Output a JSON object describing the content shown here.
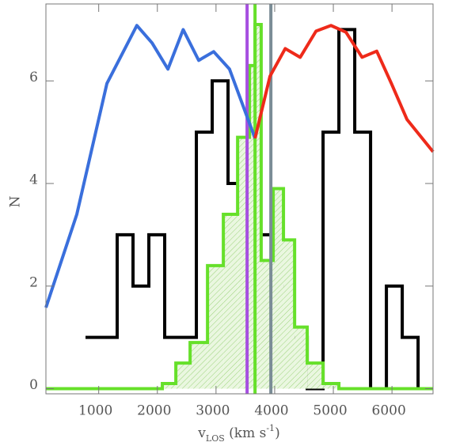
{
  "chart_data": {
    "type": "histogram",
    "xlim": [
      100,
      6700
    ],
    "ylim": [
      -0.1,
      7.5
    ],
    "xticks": [
      1000,
      2000,
      3000,
      4000,
      5000,
      6000
    ],
    "yticks": [
      0,
      2,
      4,
      6
    ],
    "ylabel": "N",
    "xlabel": [
      {
        "role": "base",
        "text": "v"
      },
      {
        "role": "sub",
        "text": "LOS"
      },
      {
        "role": "base",
        "text": " (km s"
      },
      {
        "role": "sup",
        "text": "-1"
      },
      {
        "role": "base",
        "text": ")"
      }
    ],
    "histograms": [
      {
        "color": "#000000",
        "hatch": false,
        "bins": [
          775,
          1045,
          1315,
          1585,
          1855,
          2125,
          2395,
          2665,
          2935,
          3205,
          3475,
          3745,
          4015,
          4285,
          4555,
          4825,
          5095,
          5365,
          5635,
          5905,
          6175,
          6445,
          6700
        ],
        "counts": [
          1,
          1,
          3,
          2,
          3,
          1,
          1,
          5,
          6,
          4,
          3,
          3,
          2,
          1,
          0,
          5,
          7,
          5,
          0,
          2,
          1,
          0
        ]
      },
      {
        "color": "#66e02a",
        "hatch": true,
        "bins": [
          100,
          2085,
          2315,
          2558,
          2855,
          3125,
          3368,
          3570,
          3665,
          3770,
          3975,
          4150,
          4340,
          4555,
          4825,
          5095,
          6700
        ],
        "counts": [
          0,
          0.1,
          0.5,
          0.9,
          2.4,
          3.4,
          4.9,
          6.3,
          7.1,
          2.5,
          3.9,
          2.9,
          1.2,
          0.5,
          0.1,
          0
        ]
      }
    ],
    "lines": [
      {
        "color": "#3a6fdc",
        "x": [
          100,
          627,
          1140,
          1650,
          1910,
          2180,
          2440,
          2705,
          2960,
          3230,
          3665
        ],
        "values": [
          1.58,
          3.4,
          5.95,
          7.08,
          6.74,
          6.23,
          7.0,
          6.4,
          6.57,
          6.23,
          4.88
        ]
      },
      {
        "color": "#ee2a1a",
        "x": [
          3665,
          3920,
          4180,
          4435,
          4705,
          4960,
          5215,
          5490,
          5740,
          5990,
          6255,
          6700
        ],
        "values": [
          4.88,
          6.09,
          6.63,
          6.46,
          6.97,
          7.08,
          6.95,
          6.46,
          6.58,
          5.95,
          5.25,
          4.62
        ]
      }
    ],
    "vlines": [
      {
        "x": 3530,
        "color": "#a64fe0"
      },
      {
        "x": 3665,
        "color": "#66e02a"
      },
      {
        "x": 3935,
        "color": "#7a8c96"
      }
    ]
  }
}
